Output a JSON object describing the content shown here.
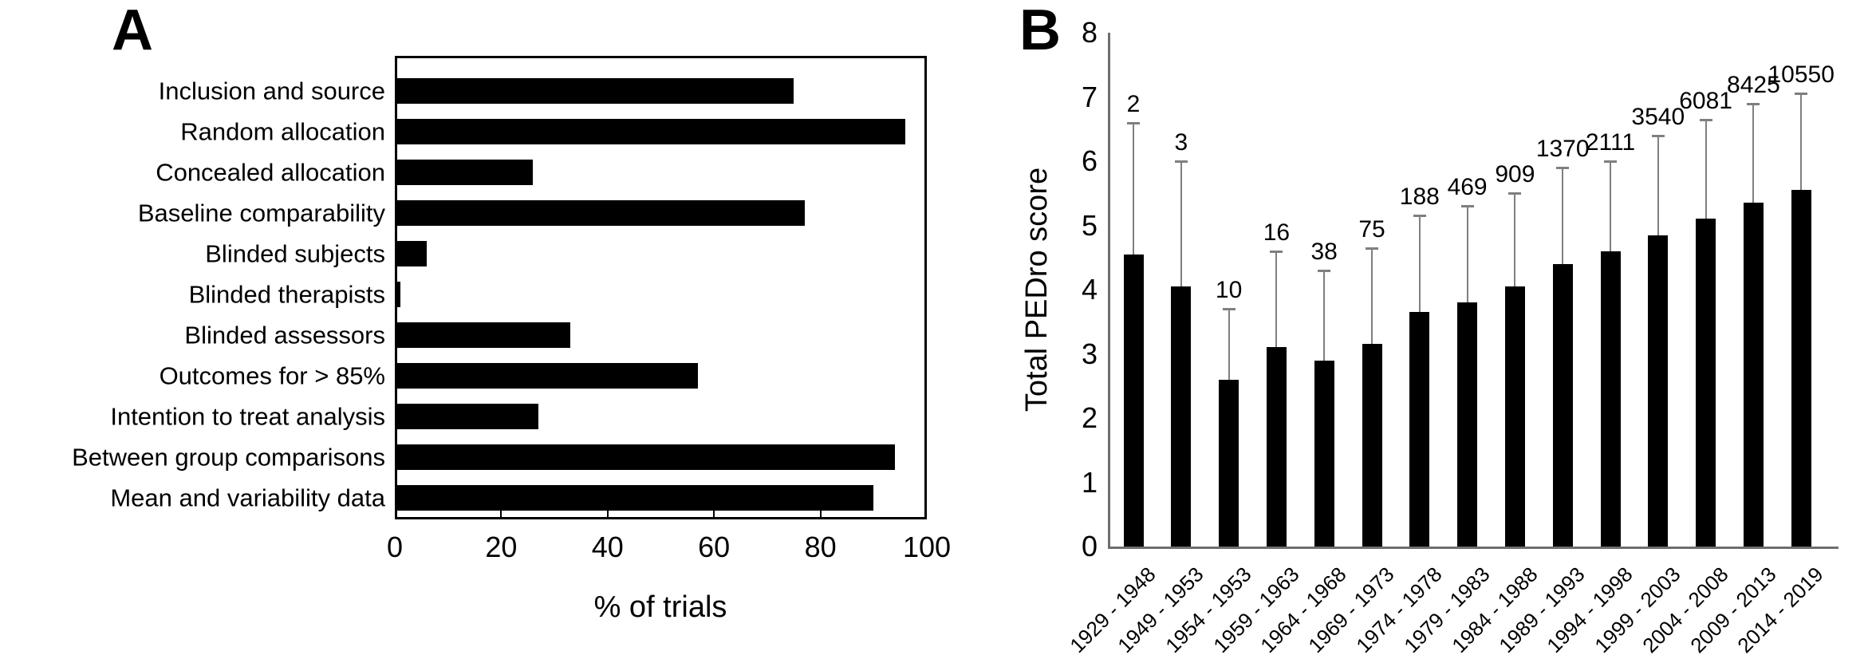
{
  "figure": {
    "background": "#ffffff",
    "bar_color": "#000000",
    "error_bar_color": "#7f7f7f",
    "axis_color_panel_b": "#6e6e6e"
  },
  "chart_data": [
    {
      "id": "panel-A",
      "type": "bar",
      "orientation": "horizontal",
      "panel_label": "A",
      "title": "",
      "xlabel": "% of trials",
      "ylabel": "",
      "xlim": [
        0,
        100
      ],
      "xticks": [
        0,
        20,
        40,
        60,
        80,
        100
      ],
      "grid": false,
      "bar_color": "#000000",
      "categories": [
        "Inclusion and source",
        "Random allocation",
        "Concealed allocation",
        "Baseline comparability",
        "Blinded subjects",
        "Blinded therapists",
        "Blinded assessors",
        "Outcomes for > 85%",
        "Intention to treat analysis",
        "Between group comparisons",
        "Mean and variability data"
      ],
      "values": [
        75,
        96,
        26,
        77,
        6,
        1,
        33,
        57,
        27,
        94,
        90
      ]
    },
    {
      "id": "panel-B",
      "type": "bar",
      "orientation": "vertical",
      "panel_label": "B",
      "title": "",
      "xlabel": "",
      "ylabel": "Total PEDro score",
      "ylim": [
        0,
        8
      ],
      "yticks": [
        0,
        1,
        2,
        3,
        4,
        5,
        6,
        7,
        8
      ],
      "grid": false,
      "bar_color": "#000000",
      "error_bar_color": "#7f7f7f",
      "categories": [
        "1929 - 1948",
        "1949 - 1953",
        "1954 - 1953",
        "1959 - 1963",
        "1964 - 1968",
        "1969 - 1973",
        "1974 - 1978",
        "1979 - 1983",
        "1984 - 1988",
        "1989 - 1993",
        "1994 - 1998",
        "1999 - 2003",
        "2004 - 2008",
        "2009 - 2013",
        "2014 - 2019"
      ],
      "means": [
        4.55,
        4.05,
        2.6,
        3.1,
        2.9,
        3.15,
        3.65,
        3.8,
        4.05,
        4.4,
        4.6,
        4.85,
        5.1,
        5.35,
        5.55
      ],
      "error_bar_tops": [
        6.6,
        6.0,
        3.7,
        4.6,
        4.3,
        4.65,
        5.15,
        5.3,
        5.5,
        5.9,
        6.0,
        6.4,
        6.65,
        6.9,
        7.05
      ],
      "n_labels": [
        "2",
        "3",
        "10",
        "16",
        "38",
        "75",
        "188",
        "469",
        "909",
        "1370",
        "2111",
        "3540",
        "6081",
        "8425",
        "10550"
      ]
    }
  ]
}
